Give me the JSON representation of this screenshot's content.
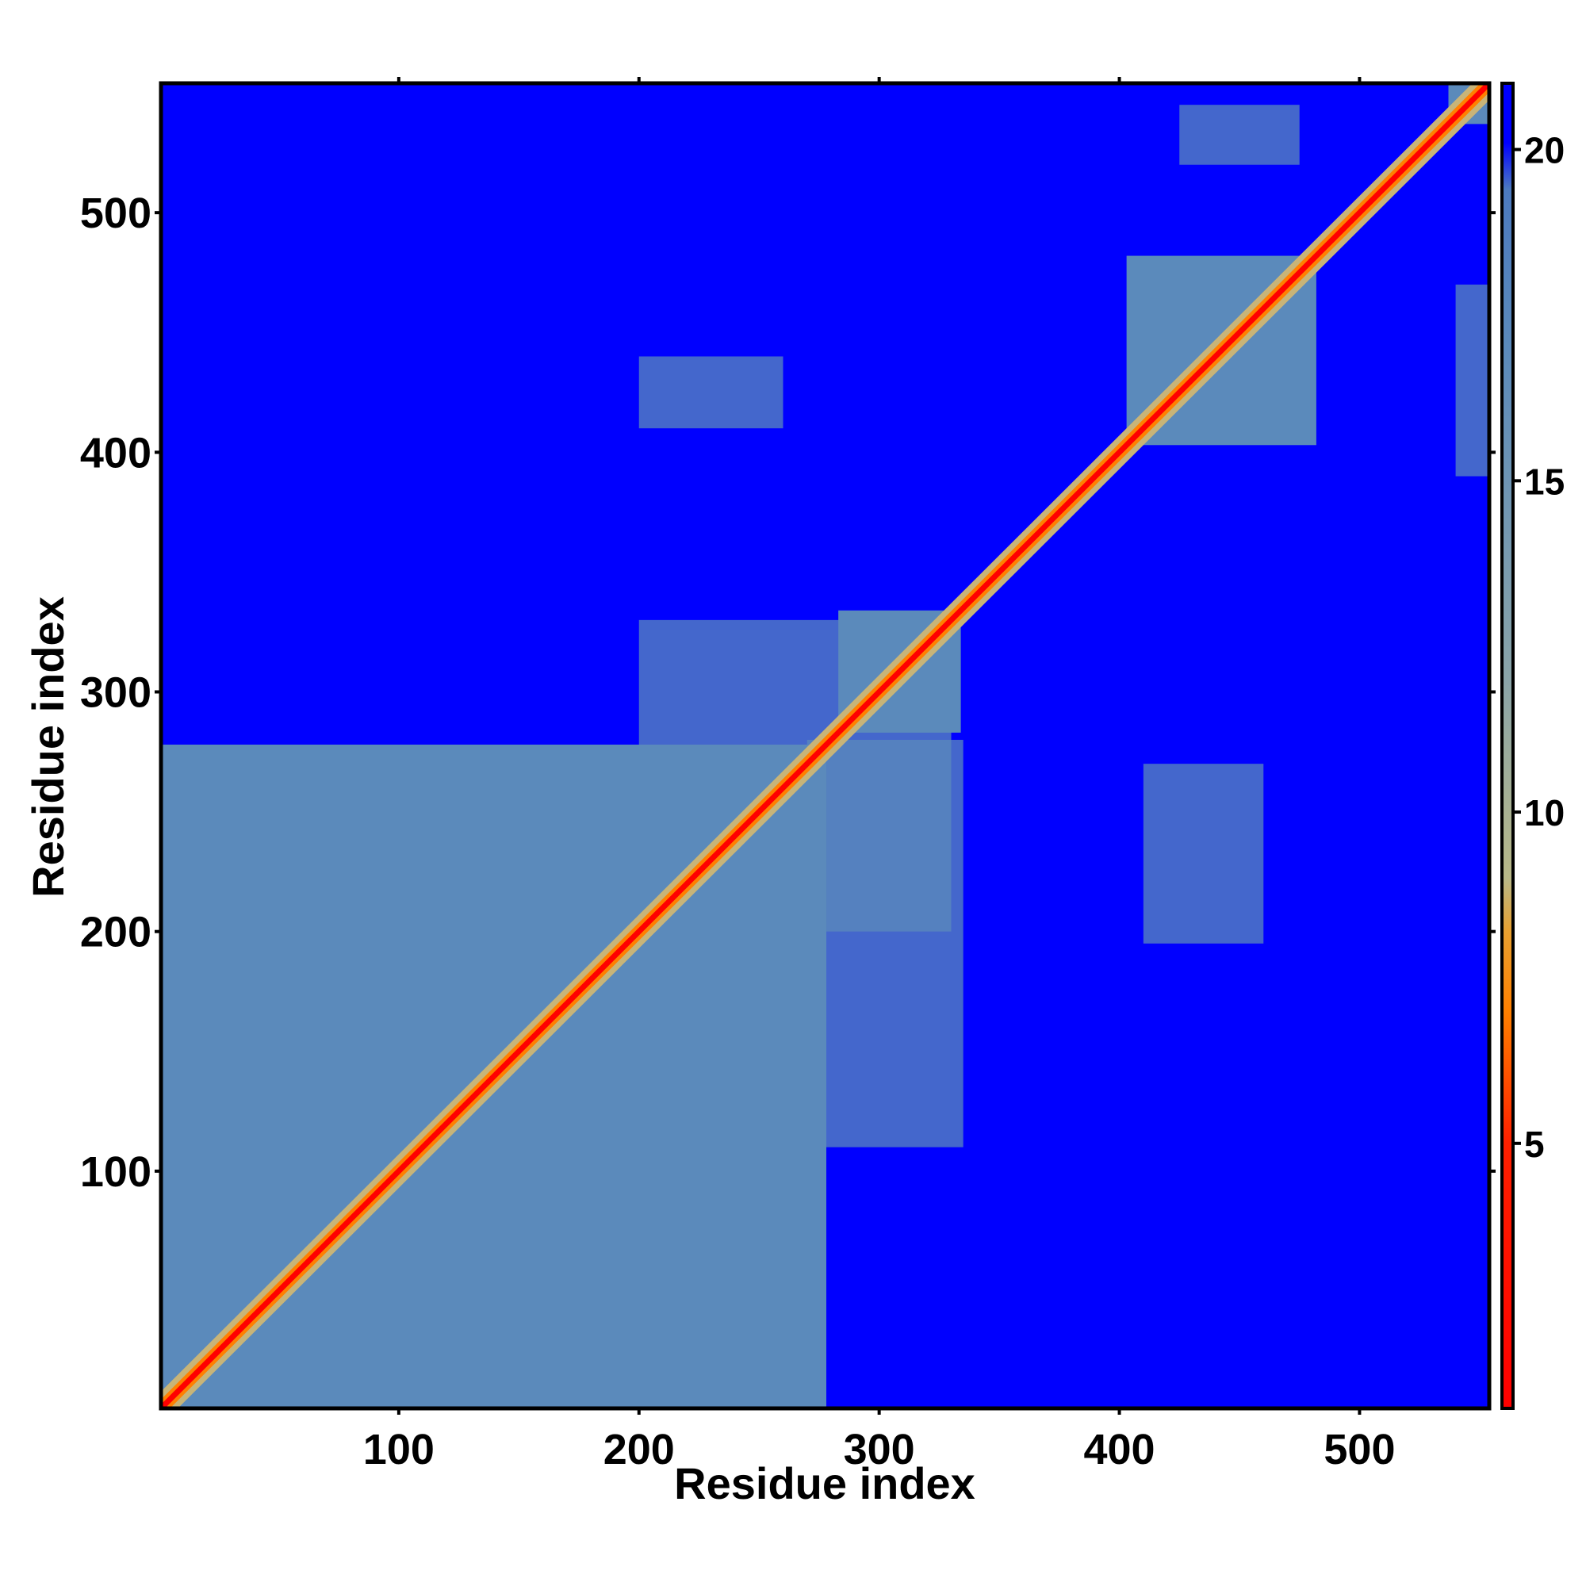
{
  "chart_data": {
    "type": "heatmap",
    "title": "",
    "xlabel": "Residue index",
    "ylabel": "Residue index",
    "xlim": [
      1,
      554
    ],
    "ylim": [
      1,
      554
    ],
    "x_ticks": [
      100,
      200,
      300,
      400,
      500
    ],
    "y_ticks": [
      100,
      200,
      300,
      400,
      500
    ],
    "x_tick_labels": [
      "100",
      "200",
      "300",
      "400",
      "500"
    ],
    "y_tick_labels": [
      "100",
      "200",
      "300",
      "400",
      "500"
    ],
    "colorbar": {
      "range": [
        1,
        21
      ],
      "ticks": [
        5,
        10,
        15,
        20
      ],
      "tick_labels": [
        "5",
        "10",
        "15",
        "20"
      ],
      "colors": [
        "#ff0000",
        "#ff8000",
        "#c8b478",
        "#5b8abb",
        "#0000ff"
      ]
    },
    "background_value": 21,
    "background_color": "#0000ff",
    "diagonal_color": "#ff0000",
    "domains": [
      {
        "start": 1,
        "end": 278,
        "color": "#5b8abb"
      },
      {
        "start": 283,
        "end": 334,
        "color": "#5b8abb"
      },
      {
        "start": 403,
        "end": 482,
        "color": "#5b8abb"
      },
      {
        "start": 537,
        "end": 554,
        "color": "#5b8abb"
      }
    ],
    "contact_patches": [
      {
        "x": [
          200,
          330
        ],
        "y": [
          200,
          330
        ],
        "color": "#5b8abb"
      },
      {
        "x": [
          270,
          335
        ],
        "y": [
          110,
          280
        ],
        "color": "#5b8abb"
      },
      {
        "x": [
          200,
          260
        ],
        "y": [
          410,
          440
        ],
        "color": "#5b8abb"
      },
      {
        "x": [
          410,
          460
        ],
        "y": [
          195,
          270
        ],
        "color": "#5b8abb"
      },
      {
        "x": [
          425,
          475
        ],
        "y": [
          520,
          545
        ],
        "color": "#5b8abb"
      },
      {
        "x": [
          540,
          555
        ],
        "y": [
          390,
          470
        ],
        "color": "#5b8abb"
      }
    ],
    "grid": false,
    "legend": "colorbar-right"
  }
}
